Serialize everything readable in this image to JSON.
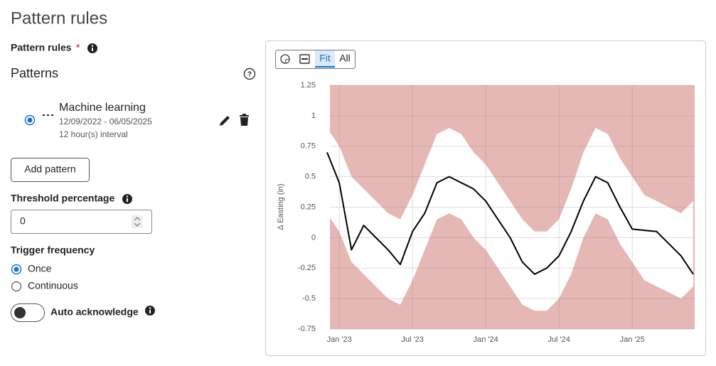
{
  "header": {
    "title": "Pattern rules"
  },
  "form": {
    "pattern_rules_label": "Pattern rules",
    "required_mark": "*",
    "patterns_heading": "Patterns",
    "pattern": {
      "name": "Machine learning",
      "dates": "12/09/2022 - 06/05/2025",
      "interval": "12 hour(s) interval"
    },
    "add_pattern": "Add pattern",
    "threshold_label": "Threshold percentage",
    "threshold_value": "0",
    "trigger_label": "Trigger frequency",
    "trigger_options": [
      "Once",
      "Continuous"
    ],
    "auto_ack_label": "Auto acknowledge"
  },
  "toolbar": {
    "fit": "Fit",
    "all": "All"
  },
  "chart_data": {
    "type": "line",
    "y_label": "Δ Easting (in)",
    "color": "#000000",
    "band_color": "#ffffff",
    "plot_color": "#e6b8b5",
    "grid": true,
    "x": [
      "2022-12",
      "2023-01",
      "2023-02",
      "2023-03",
      "2023-04",
      "2023-05",
      "2023-06",
      "2023-07",
      "2023-08",
      "2023-09",
      "2023-10",
      "2023-11",
      "2023-12",
      "2024-01",
      "2024-02",
      "2024-03",
      "2024-04",
      "2024-05",
      "2024-06",
      "2024-07",
      "2024-08",
      "2024-09",
      "2024-10",
      "2024-11",
      "2024-12",
      "2025-01",
      "2025-02",
      "2025-03",
      "2025-04",
      "2025-05",
      "2025-06"
    ],
    "values": [
      0.7,
      0.45,
      -0.1,
      0.1,
      0.0,
      -0.1,
      -0.22,
      0.05,
      0.2,
      0.45,
      0.5,
      0.45,
      0.4,
      0.3,
      0.15,
      0.0,
      -0.2,
      -0.3,
      -0.25,
      -0.15,
      0.05,
      0.3,
      0.5,
      0.45,
      0.25,
      0.07,
      0.06,
      0.05,
      -0.05,
      -0.15,
      -0.3
    ],
    "upper": [
      0.9,
      0.75,
      0.5,
      0.4,
      0.3,
      0.2,
      0.15,
      0.35,
      0.6,
      0.85,
      0.9,
      0.85,
      0.7,
      0.6,
      0.45,
      0.3,
      0.15,
      0.05,
      0.05,
      0.15,
      0.4,
      0.7,
      0.9,
      0.85,
      0.65,
      0.5,
      0.35,
      0.3,
      0.25,
      0.2,
      0.3
    ],
    "lower": [
      0.2,
      0.05,
      -0.2,
      -0.3,
      -0.4,
      -0.5,
      -0.55,
      -0.35,
      -0.1,
      0.15,
      0.2,
      0.15,
      0.0,
      -0.1,
      -0.25,
      -0.4,
      -0.55,
      -0.6,
      -0.6,
      -0.5,
      -0.3,
      0.0,
      0.2,
      0.15,
      -0.05,
      -0.2,
      -0.35,
      -0.4,
      -0.45,
      -0.5,
      -0.4
    ],
    "xlim": [
      "2022-12",
      "2025-06"
    ],
    "xticks": [
      {
        "value": "2023-01",
        "label": "Jan '23"
      },
      {
        "value": "2023-07",
        "label": "Jul '23"
      },
      {
        "value": "2024-01",
        "label": "Jan '24"
      },
      {
        "value": "2024-07",
        "label": "Jul '24"
      },
      {
        "value": "2025-01",
        "label": "Jan '25"
      }
    ],
    "ylim": [
      -0.75,
      1.25
    ],
    "yticks": [
      -0.75,
      -0.5,
      -0.25,
      0,
      0.25,
      0.5,
      0.75,
      1,
      1.25
    ]
  }
}
